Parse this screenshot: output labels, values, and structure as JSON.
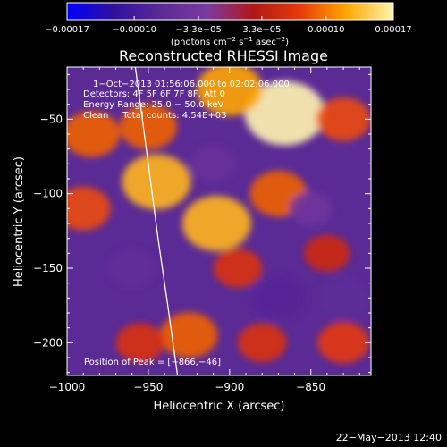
{
  "chart_data": {
    "type": "heatmap",
    "title": "Reconstructed RHESSI Image",
    "xlabel": "Heliocentric X (arcsec)",
    "ylabel": "Heliocentric Y (arcsec)",
    "xlim": [
      -1000,
      -813
    ],
    "ylim": [
      -222,
      -15
    ],
    "x_ticks": [
      -1000,
      -950,
      -900,
      -850
    ],
    "x_tick_labels": [
      "−1000",
      "−950",
      "−900",
      "−850"
    ],
    "y_ticks": [
      -50,
      -100,
      -150,
      -200
    ],
    "y_tick_labels": [
      "−50",
      "−100",
      "−150",
      "−200"
    ],
    "colorbar": {
      "min": -0.00017,
      "max": 0.00017,
      "tick_labels": [
        "−0.00017",
        "−0.00010",
        "−3.3e−05",
        "3.3e−05",
        "0.00010",
        "0.00017"
      ],
      "unit_parts": [
        "(photons cm",
        "−2",
        " s",
        "−1",
        " asec",
        "−2",
        ")"
      ],
      "colors": [
        "#0000ff",
        "#3010a0",
        "#5a2a95",
        "#7a3aa0",
        "#b01818",
        "#e83a0a",
        "#ffa800",
        "#fff4b0"
      ]
    },
    "annotations": [
      "1−Oct−2013 01:56:06.000 to 02:02:06.000",
      "Detectors: 4F 5F 6F 7F 8F, Att 0",
      "Energy Range: 25.0 − 50.0 keV",
      "Clean     Total counts: 4.54E+03"
    ],
    "peak_label": "Position of Peak = [−866,−46]",
    "peak": {
      "x": -866,
      "y": -46
    },
    "limb_curve": [
      [
        -958,
        -15
      ],
      [
        -950,
        -80
      ],
      [
        -944,
        -130
      ],
      [
        -938,
        -175
      ],
      [
        -932,
        -222
      ]
    ],
    "blobs": [
      {
        "x": -866,
        "y": -46,
        "value": 0.00017
      },
      {
        "x": -900,
        "y": -30,
        "value": 0.00012
      },
      {
        "x": -945,
        "y": -92,
        "value": 0.00013
      },
      {
        "x": -908,
        "y": -120,
        "value": 0.00013
      },
      {
        "x": -950,
        "y": -55,
        "value": 9e-05
      },
      {
        "x": -985,
        "y": -60,
        "value": 9e-05
      },
      {
        "x": -990,
        "y": -110,
        "value": 8e-05
      },
      {
        "x": -870,
        "y": -100,
        "value": 9e-05
      },
      {
        "x": -895,
        "y": -150,
        "value": 6e-05
      },
      {
        "x": -925,
        "y": -195,
        "value": 9e-05
      },
      {
        "x": -830,
        "y": -200,
        "value": 7e-05
      },
      {
        "x": -880,
        "y": -200,
        "value": 6e-05
      },
      {
        "x": -955,
        "y": -200,
        "value": 6e-05
      },
      {
        "x": -830,
        "y": -50,
        "value": 8e-05
      },
      {
        "x": -840,
        "y": -140,
        "value": 5e-05
      },
      {
        "x": -870,
        "y": -170,
        "value": -8e-05
      },
      {
        "x": -830,
        "y": -170,
        "value": -7e-05
      },
      {
        "x": -960,
        "y": -150,
        "value": -6e-05
      },
      {
        "x": -910,
        "y": -80,
        "value": -5e-05
      },
      {
        "x": -850,
        "y": -110,
        "value": -4e-05
      }
    ]
  },
  "footer": {
    "timestamp": "22−May−2013 12:40"
  }
}
